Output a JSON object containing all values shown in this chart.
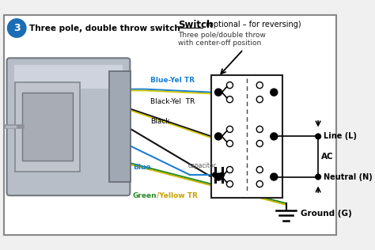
{
  "bg_color": "#f0f0f0",
  "title_num": "3",
  "title_circle_color": "#1a6db5",
  "title_text": "Three pole, double throw switch",
  "switch_bold": "Switch",
  "switch_normal": " (optional – for reversing)",
  "switch_sub1": "Three pole/double throw",
  "switch_sub2": "with center-off position",
  "border_color": "#888888",
  "motor_body_color": "#b8bec8",
  "motor_face_color": "#9aa0ac",
  "motor_dark": "#707880",
  "motor_light": "#d8dce8",
  "wire_blue_yel_blue": "#1a7fd4",
  "wire_blue_yel_yel": "#d4c800",
  "wire_black": "#111111",
  "wire_blue": "#1a7fd4",
  "wire_green": "#2a8a2a",
  "wire_yellow": "#c8b800",
  "switch_box_color": "#ffffff",
  "switch_border": "#222222",
  "label_blue_yel": "Blue-Yel TR",
  "label_black_yel": "Black-Yel  TR",
  "label_black": "Black",
  "label_blue": "Blue",
  "label_capacitor": "capacitor",
  "label_green": "Green",
  "label_yellow_tr": "/Yellow TR",
  "label_line": "Line (L)",
  "label_ac": "AC",
  "label_neutral": "Neutral (N)",
  "label_ground": "Ground (G)"
}
